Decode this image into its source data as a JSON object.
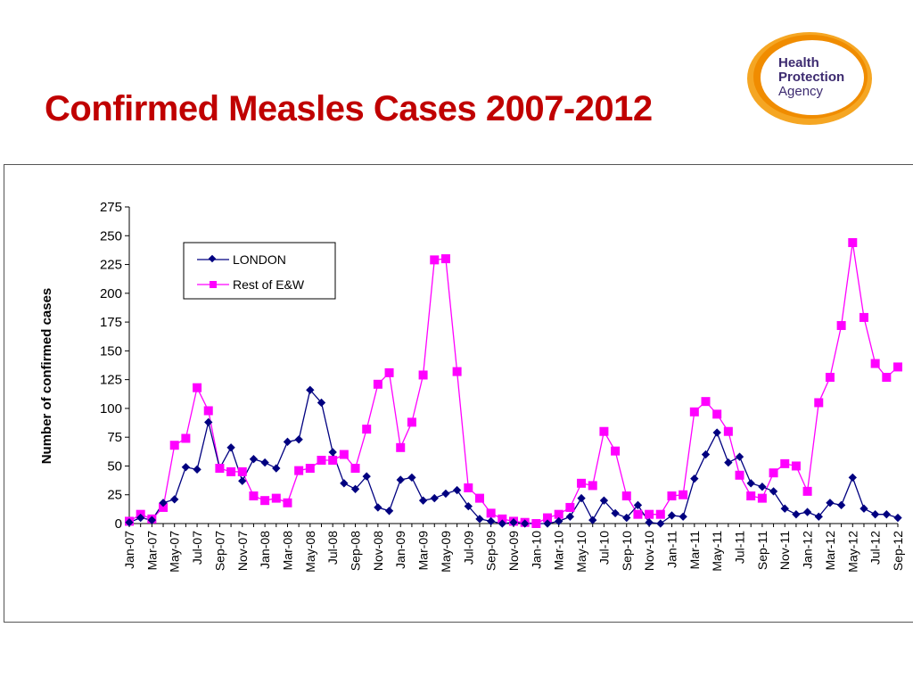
{
  "slide": {
    "title": "Confirmed Measles Cases 2007-2012",
    "logo_text": [
      "Health",
      "Protection",
      "Agency"
    ]
  },
  "colors": {
    "title": "#c00000",
    "london": "#000080",
    "rest": "#ff00ff",
    "logo_orange": "#f39c12",
    "logo_text": "#3d2b70"
  },
  "chart_data": {
    "type": "line",
    "title": "",
    "xlabel": "",
    "ylabel": "Number of confirmed cases",
    "ylim": [
      0,
      275
    ],
    "yticks": [
      0,
      25,
      50,
      75,
      100,
      125,
      150,
      175,
      200,
      225,
      250,
      275
    ],
    "grid": false,
    "legend": "top-left",
    "categories": [
      "Jan-07",
      "Feb-07",
      "Mar-07",
      "Apr-07",
      "May-07",
      "Jun-07",
      "Jul-07",
      "Aug-07",
      "Sep-07",
      "Oct-07",
      "Nov-07",
      "Dec-07",
      "Jan-08",
      "Feb-08",
      "Mar-08",
      "Apr-08",
      "May-08",
      "Jun-08",
      "Jul-08",
      "Aug-08",
      "Sep-08",
      "Oct-08",
      "Nov-08",
      "Dec-08",
      "Jan-09",
      "Feb-09",
      "Mar-09",
      "Apr-09",
      "May-09",
      "Jun-09",
      "Jul-09",
      "Aug-09",
      "Sep-09",
      "Oct-09",
      "Nov-09",
      "Dec-09",
      "Jan-10",
      "Feb-10",
      "Mar-10",
      "Apr-10",
      "May-10",
      "Jun-10",
      "Jul-10",
      "Aug-10",
      "Sep-10",
      "Oct-10",
      "Nov-10",
      "Dec-10",
      "Jan-11",
      "Feb-11",
      "Mar-11",
      "Apr-11",
      "May-11",
      "Jun-11",
      "Jul-11",
      "Aug-11",
      "Sep-11",
      "Oct-11",
      "Nov-11",
      "Dec-11",
      "Jan-12",
      "Feb-12",
      "Mar-12",
      "Apr-12",
      "May-12",
      "Jun-12",
      "Jul-12",
      "Aug-12",
      "Sep-12"
    ],
    "tick_labels": [
      "Jan-07",
      "Mar-07",
      "May-07",
      "Jul-07",
      "Sep-07",
      "Nov-07",
      "Jan-08",
      "Mar-08",
      "May-08",
      "Jul-08",
      "Sep-08",
      "Nov-08",
      "Jan-09",
      "Mar-09",
      "May-09",
      "Jul-09",
      "Sep-09",
      "Nov-09",
      "Jan-10",
      "Mar-10",
      "May-10",
      "Jul-10",
      "Sep-10",
      "Nov-10",
      "Jan-11",
      "Mar-11",
      "May-11",
      "Jul-11",
      "Sep-11",
      "Nov-11",
      "Jan-12",
      "Mar-12",
      "May-12",
      "Jul-12",
      "Sep-12"
    ],
    "series": [
      {
        "name": "LONDON",
        "color": "#000080",
        "marker": "diamond",
        "values": [
          1,
          5,
          3,
          18,
          21,
          49,
          47,
          88,
          48,
          66,
          37,
          56,
          53,
          48,
          71,
          73,
          116,
          105,
          62,
          35,
          30,
          41,
          14,
          11,
          38,
          40,
          20,
          22,
          26,
          29,
          15,
          4,
          2,
          0,
          1,
          0,
          0,
          0,
          2,
          6,
          22,
          3,
          20,
          9,
          5,
          16,
          1,
          0,
          7,
          6,
          39,
          60,
          79,
          53,
          58,
          35,
          32,
          28,
          13,
          8,
          10,
          6,
          18,
          16,
          40,
          13,
          8,
          8,
          5
        ],
        "markers": [
          true,
          true,
          true,
          true,
          true,
          true,
          true,
          true,
          false,
          true,
          true,
          true,
          true,
          true,
          true,
          true,
          true,
          true,
          true,
          true,
          true,
          true,
          true,
          true,
          true,
          true,
          true,
          true,
          true,
          true,
          true,
          true,
          true,
          true,
          true,
          true,
          false,
          true,
          true,
          true,
          true,
          true,
          true,
          true,
          true,
          true,
          true,
          true,
          true,
          true,
          true,
          true,
          true,
          true,
          true,
          true,
          true,
          true,
          true,
          true,
          true,
          true,
          true,
          true,
          true,
          true,
          true,
          true,
          true
        ]
      },
      {
        "name": "Rest of E&W",
        "color": "#ff00ff",
        "marker": "square",
        "values": [
          2,
          8,
          4,
          14,
          68,
          74,
          118,
          98,
          48,
          45,
          45,
          24,
          20,
          22,
          18,
          46,
          48,
          55,
          55,
          60,
          48,
          82,
          121,
          131,
          66,
          88,
          129,
          229,
          230,
          132,
          31,
          22,
          9,
          4,
          2,
          1,
          0,
          5,
          8,
          14,
          35,
          33,
          80,
          63,
          24,
          8,
          8,
          8,
          24,
          25,
          97,
          106,
          95,
          80,
          42,
          24,
          22,
          44,
          52,
          50,
          28,
          105,
          127,
          172,
          244,
          179,
          139,
          127,
          136
        ]
      }
    ]
  }
}
